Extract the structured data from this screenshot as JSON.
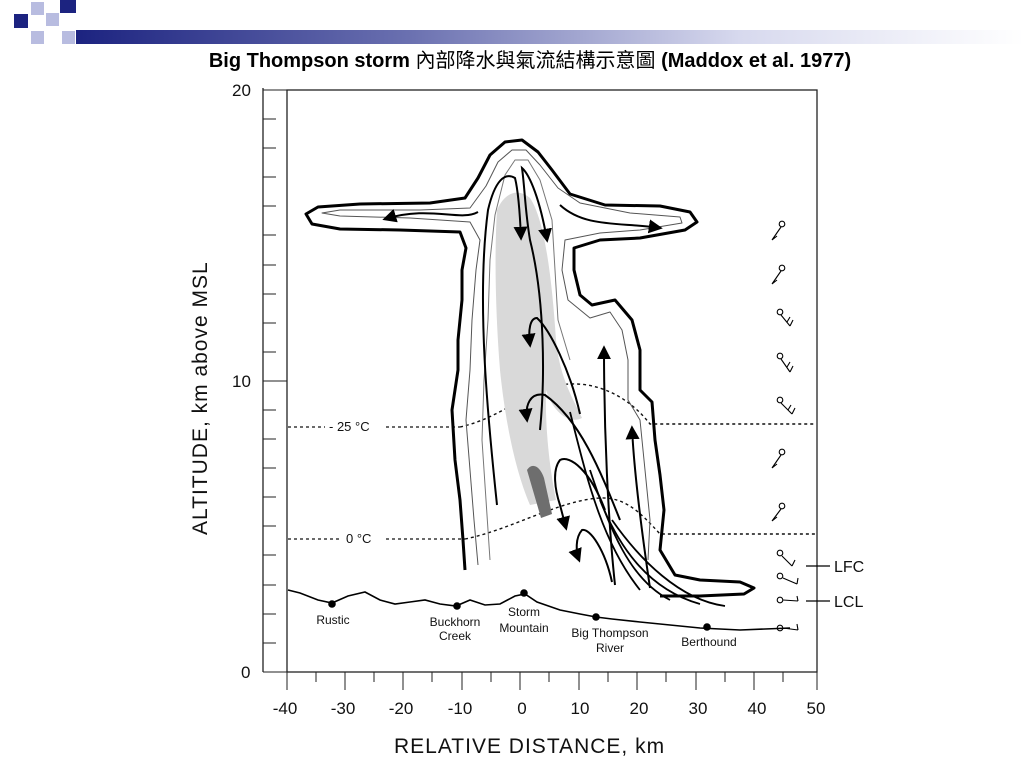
{
  "slide": {
    "title_prefix": "Big Thompson storm ",
    "title_cjk": "內部降水與氣流結構示意圖",
    "title_suffix": " (Maddox et al. 1977)"
  },
  "diagram": {
    "y_axis_label": "ALTITUDE,   km  above  MSL",
    "x_axis_label": "RELATIVE  DISTANCE,   km",
    "y_ticks": [
      "20",
      "10",
      "0"
    ],
    "x_ticks": [
      "-40",
      "-30",
      "-20",
      "-10",
      "0",
      "10",
      "20",
      "30",
      "40",
      "50"
    ],
    "isotherms": [
      {
        "label": "- 25 °C"
      },
      {
        "label": "0 °C"
      }
    ],
    "levels": [
      {
        "label": "LFC"
      },
      {
        "label": "LCL"
      }
    ],
    "locations": [
      {
        "lines": [
          "Rustic"
        ]
      },
      {
        "lines": [
          "Buckhorn",
          "Creek"
        ]
      },
      {
        "lines": [
          "Storm",
          "Mountain"
        ]
      },
      {
        "lines": [
          "Big Thompson",
          "River"
        ]
      },
      {
        "lines": [
          "Berthound"
        ]
      }
    ],
    "colors": {
      "shade_light": "#d9d9d9",
      "shade_dark": "#6e6e6e",
      "deco_navy": "#1c2380"
    }
  }
}
